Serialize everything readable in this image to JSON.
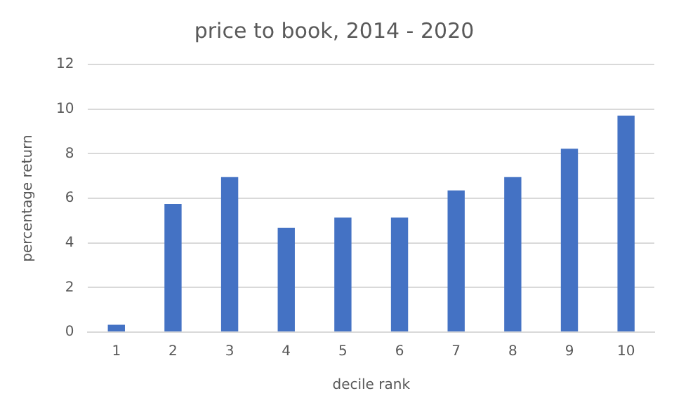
{
  "chart_data": {
    "type": "bar",
    "title": "price to book, 2014 - 2020",
    "xlabel": "decile rank",
    "ylabel": "percentage return",
    "categories": [
      "1",
      "2",
      "3",
      "4",
      "5",
      "6",
      "7",
      "8",
      "9",
      "10"
    ],
    "values": [
      0.33,
      5.75,
      6.95,
      4.68,
      5.14,
      5.14,
      6.35,
      6.95,
      8.22,
      9.71
    ],
    "color": "#4472c4",
    "ylim": [
      0,
      12
    ],
    "yticks": [
      0,
      2,
      4,
      6,
      8,
      10,
      12
    ],
    "grid": "y"
  }
}
